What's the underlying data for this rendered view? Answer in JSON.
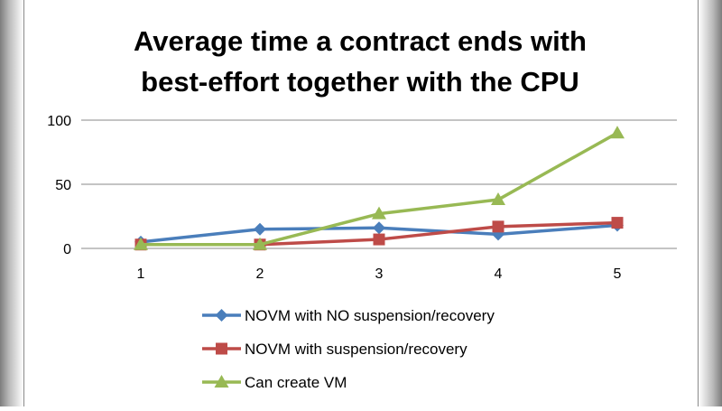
{
  "chart_data": {
    "type": "line",
    "title_lines": [
      "Average time a contract ends with",
      "best-effort together with the CPU"
    ],
    "categories": [
      "1",
      "2",
      "3",
      "4",
      "5"
    ],
    "ylim": [
      0,
      100
    ],
    "yticks": [
      "0",
      "50",
      "100"
    ],
    "grid": true,
    "legend_position": "bottom",
    "series": [
      {
        "name": "NOVM with NO suspension/recovery",
        "values": [
          5,
          15,
          16,
          11,
          18
        ],
        "color": "#4a7ebb",
        "marker": "diamond"
      },
      {
        "name": "NOVM with suspension/recovery",
        "values": [
          3,
          3,
          7,
          17,
          20
        ],
        "color": "#be4b48",
        "marker": "square"
      },
      {
        "name": "Can create VM",
        "values": [
          3,
          3,
          27,
          38,
          90
        ],
        "color": "#98b954",
        "marker": "triangle"
      }
    ]
  }
}
